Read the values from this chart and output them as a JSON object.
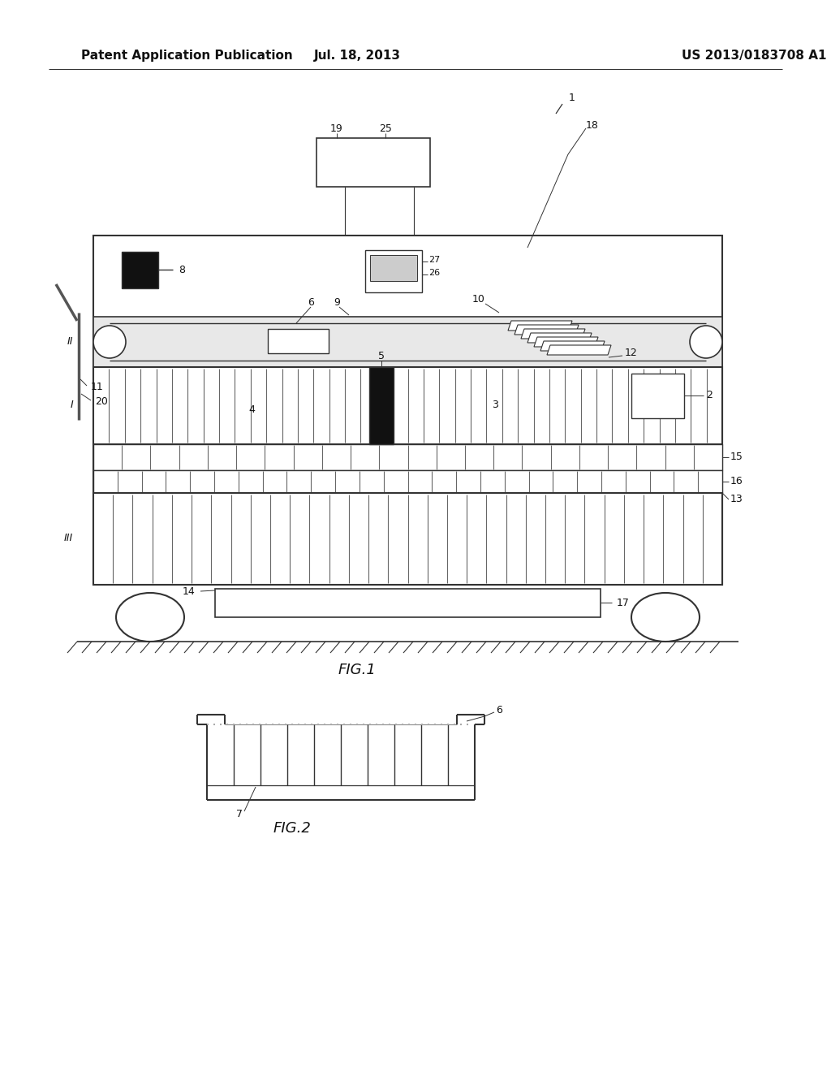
{
  "bg_color": "#ffffff",
  "line_color": "#444444",
  "dark_color": "#333333",
  "header_left": "Patent Application Publication",
  "header_center": "Jul. 18, 2013",
  "header_right": "US 2013/0183708 A1",
  "fig1_label": "FIG.1",
  "fig2_label": "FIG.2",
  "header_fontsize": 11,
  "label_fontsize": 13
}
